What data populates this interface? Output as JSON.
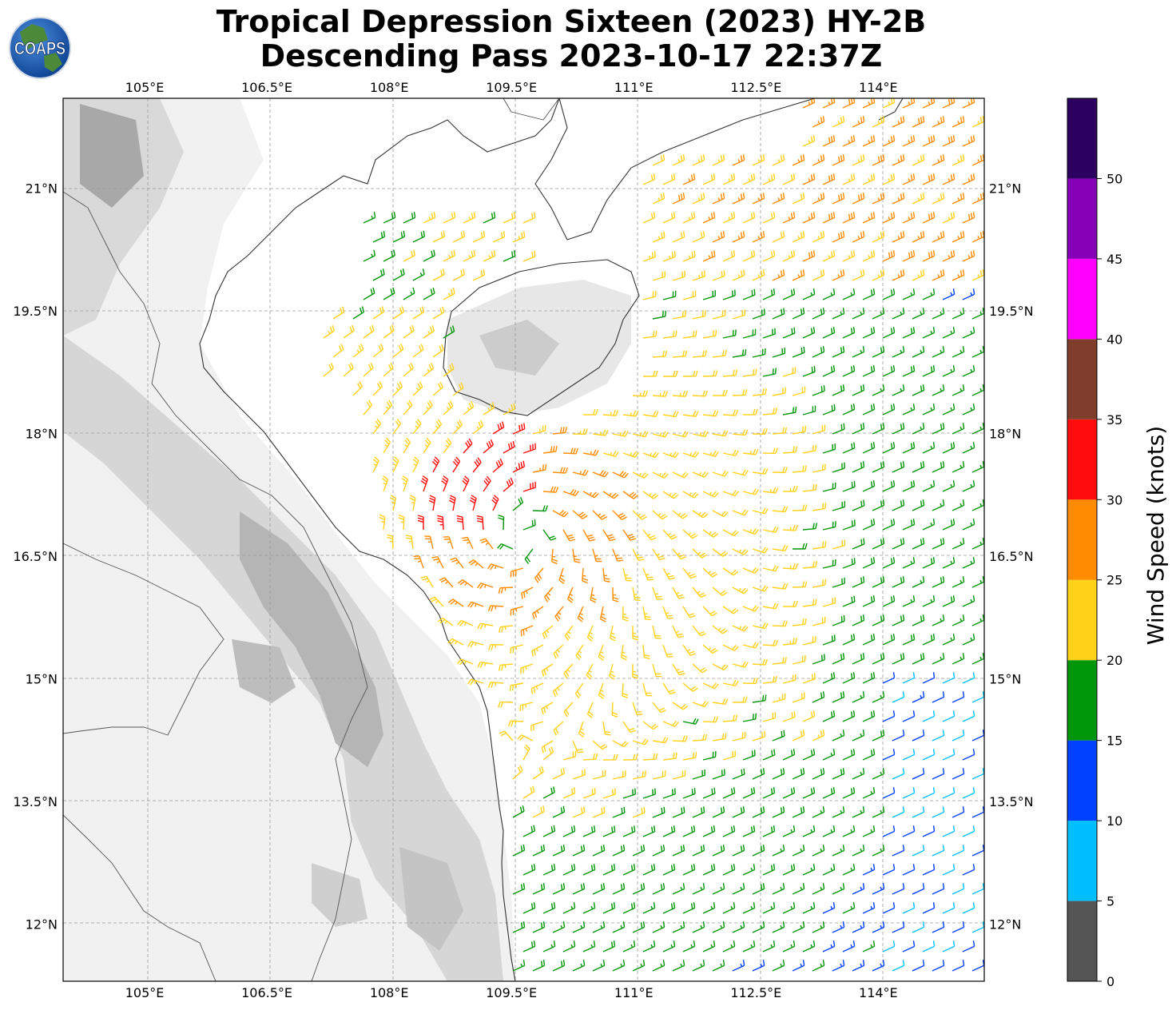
{
  "header": {
    "title_line1": "Tropical Depression Sixteen (2023) HY-2B",
    "title_line2": "Descending Pass 2023-10-17 22:37Z",
    "logo_text": "COAPS"
  },
  "map": {
    "lon_range": [
      104.0,
      115.3
    ],
    "lat_range": [
      11.3,
      22.1
    ],
    "lon_ticks": [
      "105°E",
      "106.5°E",
      "108°E",
      "109.5°E",
      "111°E",
      "112.5°E",
      "114°E"
    ],
    "lat_ticks": [
      "21°N",
      "19.5°N",
      "18°N",
      "16.5°N",
      "15°N",
      "13.5°N",
      "12°N"
    ],
    "lon_tick_values": [
      105,
      106.5,
      108,
      109.5,
      111,
      112.5,
      114
    ],
    "lat_tick_values": [
      21,
      19.5,
      18,
      16.5,
      15,
      13.5,
      12
    ],
    "grid": true,
    "background": "grayscale-terrain",
    "storm_center": {
      "lon": 109.65,
      "lat": 16.75
    }
  },
  "colorbar": {
    "label": "Wind Speed (knots)",
    "tick_labels": [
      "0",
      "5",
      "10",
      "15",
      "20",
      "25",
      "30",
      "35",
      "40",
      "45",
      "50"
    ],
    "bins": [
      {
        "min": 0,
        "max": 5,
        "color": "#555555"
      },
      {
        "min": 5,
        "max": 10,
        "color": "#00bfff"
      },
      {
        "min": 10,
        "max": 15,
        "color": "#0040ff"
      },
      {
        "min": 15,
        "max": 20,
        "color": "#00960a"
      },
      {
        "min": 20,
        "max": 25,
        "color": "#ffd21a"
      },
      {
        "min": 25,
        "max": 30,
        "color": "#ff8c00"
      },
      {
        "min": 30,
        "max": 35,
        "color": "#ff0d0d"
      },
      {
        "min": 35,
        "max": 40,
        "color": "#7f3d2c"
      },
      {
        "min": 40,
        "max": 45,
        "color": "#ff00ff"
      },
      {
        "min": 45,
        "max": 50,
        "color": "#8600b8"
      },
      {
        "min": 50,
        "max": 55,
        "color": "#2b005e"
      }
    ]
  }
}
